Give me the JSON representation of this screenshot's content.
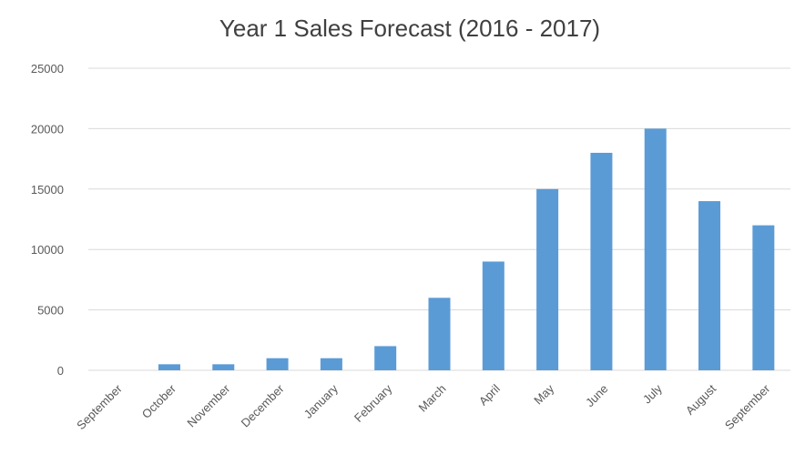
{
  "chart_data": {
    "type": "bar",
    "title": "Year 1 Sales Forecast (2016 - 2017)",
    "xlabel": "",
    "ylabel": "",
    "categories": [
      "September",
      "October",
      "November",
      "December",
      "January",
      "February",
      "March",
      "April",
      "May",
      "June",
      "July",
      "August",
      "September"
    ],
    "values": [
      0,
      500,
      500,
      1000,
      1000,
      2000,
      6000,
      9000,
      15000,
      18000,
      20000,
      14000,
      12000
    ],
    "ylim": [
      0,
      25000
    ],
    "yticks": [
      "0",
      "5000",
      "10000",
      "15000",
      "20000",
      "25000"
    ],
    "grid": true,
    "legend": "none",
    "bar_color": "#5B9BD5",
    "grid_color": "#D9D9D9"
  }
}
